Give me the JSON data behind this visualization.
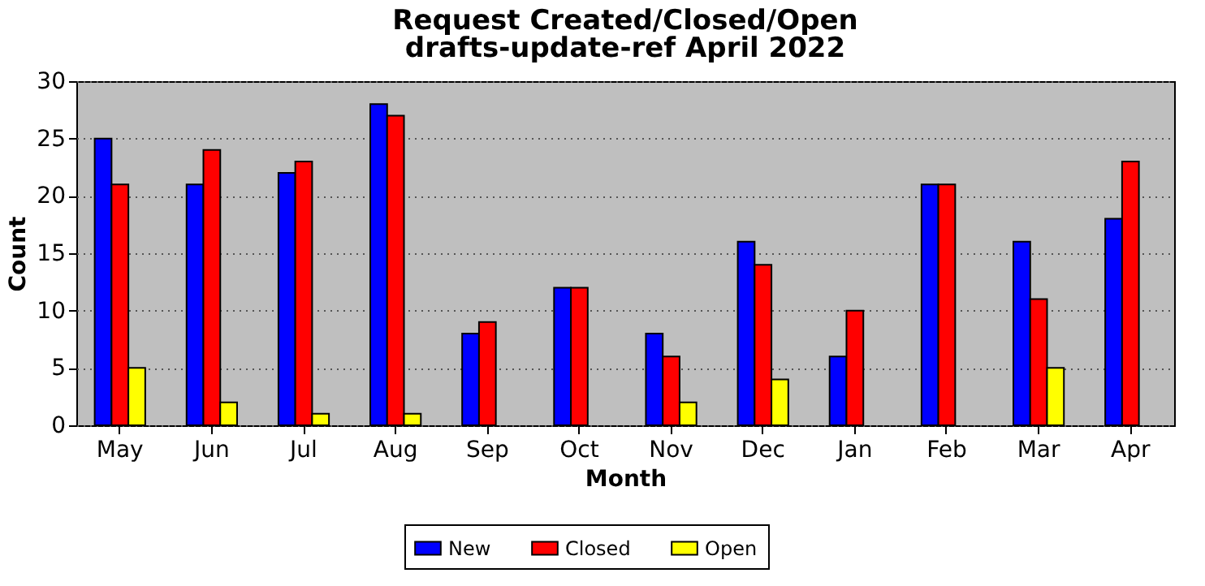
{
  "chart_data": {
    "type": "bar",
    "title": "Request Created/Closed/Open",
    "subtitle": "drafts-update-ref April 2022",
    "xlabel": "Month",
    "ylabel": "Count",
    "categories": [
      "May",
      "Jun",
      "Jul",
      "Aug",
      "Sep",
      "Oct",
      "Nov",
      "Dec",
      "Jan",
      "Feb",
      "Mar",
      "Apr"
    ],
    "series": [
      {
        "name": "New",
        "color": "#0000ff",
        "values": [
          25,
          21,
          22,
          28,
          8,
          12,
          8,
          16,
          6,
          21,
          16,
          18
        ]
      },
      {
        "name": "Closed",
        "color": "#ff0000",
        "values": [
          21,
          24,
          23,
          27,
          9,
          12,
          6,
          14,
          10,
          21,
          11,
          23
        ]
      },
      {
        "name": "Open",
        "color": "#ffff00",
        "values": [
          5,
          2,
          1,
          1,
          0,
          0,
          2,
          4,
          0,
          0,
          5,
          0
        ]
      }
    ],
    "ylim": [
      0,
      30
    ],
    "yticks": [
      0,
      5,
      10,
      15,
      20,
      25,
      30
    ],
    "grid": "y",
    "legend": "bottom"
  }
}
